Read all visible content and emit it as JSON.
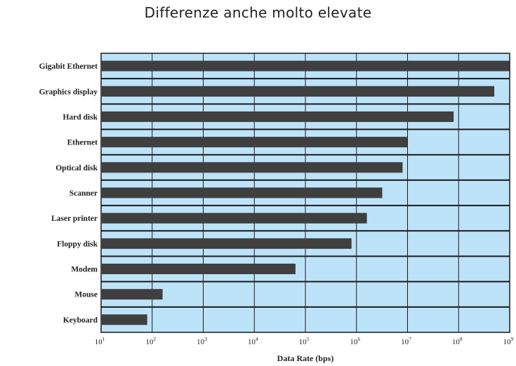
{
  "page": {
    "title": "Differenze anche molto elevate"
  },
  "chart_data": {
    "type": "bar",
    "orientation": "horizontal",
    "xscale": "log",
    "categories": [
      "Keyboard",
      "Mouse",
      "Modem",
      "Floppy disk",
      "Laser printer",
      "Scanner",
      "Optical disk",
      "Ethernet",
      "Hard disk",
      "Graphics display",
      "Gigabit Ethernet"
    ],
    "values": [
      80,
      160,
      64000,
      800000,
      1600000,
      3200000,
      8000000,
      10000000,
      80000000,
      500000000,
      1000000000
    ],
    "xlim": [
      10,
      1000000000
    ],
    "xticks": [
      {
        "value": 10,
        "base": "10",
        "exp": "1"
      },
      {
        "value": 100,
        "base": "10",
        "exp": "2"
      },
      {
        "value": 1000,
        "base": "10",
        "exp": "3"
      },
      {
        "value": 10000,
        "base": "10",
        "exp": "4"
      },
      {
        "value": 100000,
        "base": "10",
        "exp": "5"
      },
      {
        "value": 1000000,
        "base": "10",
        "exp": "6"
      },
      {
        "value": 10000000,
        "base": "10",
        "exp": "7"
      },
      {
        "value": 100000000,
        "base": "10",
        "exp": "8"
      },
      {
        "value": 1000000000,
        "base": "10",
        "exp": "9"
      }
    ],
    "xlabel": "Data Rate (bps)",
    "ylabel": "",
    "grid": true,
    "colors": {
      "background": "#bde3f9",
      "bar": "#3f3f3f",
      "grid": "#1a1a1a"
    }
  }
}
